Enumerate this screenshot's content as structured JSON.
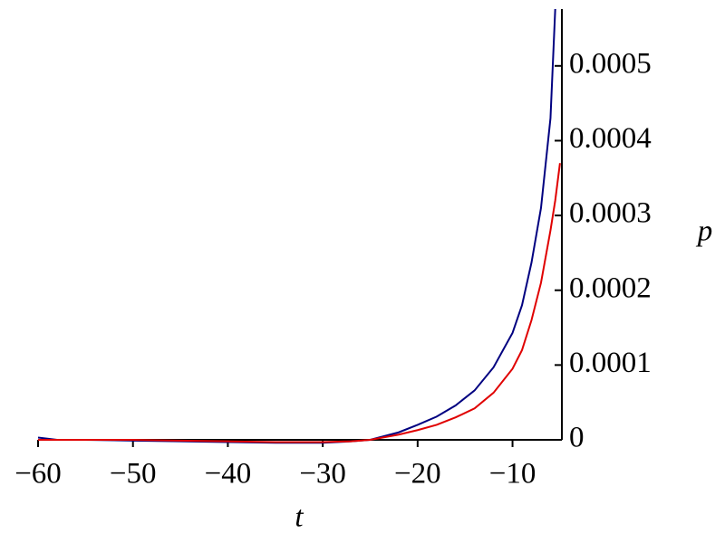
{
  "chart_data": {
    "type": "line",
    "xlabel": "t",
    "ylabel": "p",
    "x": [
      -60,
      -58,
      -55,
      -50,
      -45,
      -40,
      -35,
      -30,
      -27,
      -25,
      -22,
      -20,
      -18,
      -16,
      -14,
      -12,
      -10,
      -9,
      -8,
      -7,
      -6,
      -5.5,
      -5
    ],
    "series": [
      {
        "color": "#000080",
        "values": [
          3e-06,
          0,
          0,
          -1e-06,
          -2e-06,
          -3e-06,
          -4e-06,
          -4e-06,
          -2e-06,
          0,
          1e-05,
          2e-05,
          3.1e-05,
          4.6e-05,
          6.6e-05,
          9.7e-05,
          0.000143,
          0.00018,
          0.000237,
          0.00031,
          0.00043,
          0.000576,
          null
        ]
      },
      {
        "color": "#e00000",
        "values": [
          0,
          0,
          0,
          0,
          -1e-06,
          -2e-06,
          -3e-06,
          -3e-06,
          -2e-06,
          0,
          7e-06,
          1.3e-05,
          2e-05,
          3e-05,
          4.2e-05,
          6.3e-05,
          9.5e-05,
          0.00012,
          0.00016,
          0.00021,
          0.00028,
          0.00032,
          0.00037
        ]
      }
    ],
    "xlim": [
      -60,
      -4.8
    ],
    "ylim": [
      0,
      0.000576
    ],
    "xticks": [
      {
        "value": -60,
        "label": "−60"
      },
      {
        "value": -50,
        "label": "−50"
      },
      {
        "value": -40,
        "label": "−40"
      },
      {
        "value": -30,
        "label": "−30"
      },
      {
        "value": -20,
        "label": "−20"
      },
      {
        "value": -10,
        "label": "−10"
      }
    ],
    "yticks": [
      0,
      0.0001,
      0.0002,
      0.0003,
      0.0004,
      0.0005
    ]
  }
}
